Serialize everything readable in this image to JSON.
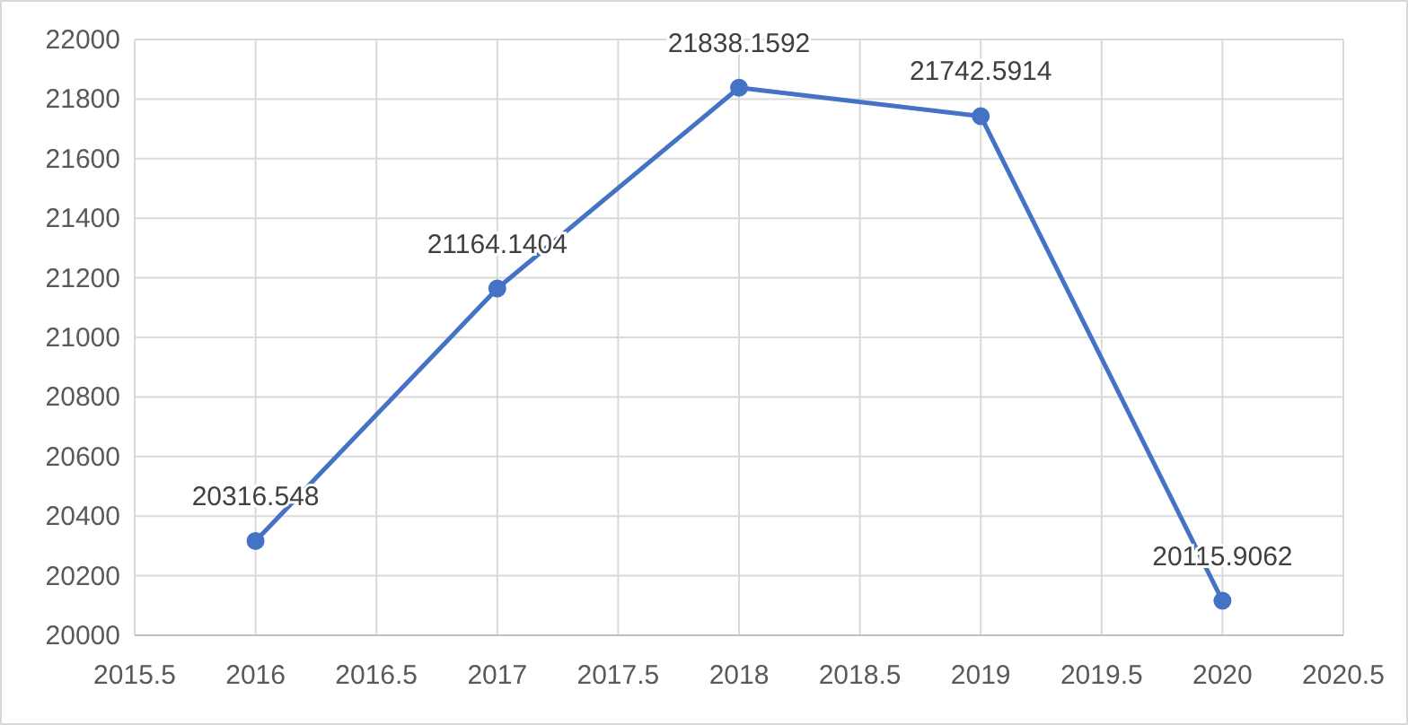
{
  "chart_data": {
    "type": "line",
    "x": [
      2016,
      2017,
      2018,
      2019,
      2020
    ],
    "series": [
      {
        "color": "#4472c4",
        "values": [
          20316.548,
          21164.1404,
          21838.1592,
          21742.5914,
          20115.9062
        ]
      }
    ],
    "xlim": [
      2015.5,
      2020.5
    ],
    "xticks": [
      2015.5,
      2016,
      2016.5,
      2017,
      2017.5,
      2018,
      2018.5,
      2019,
      2019.5,
      2020,
      2020.5
    ],
    "ylim": [
      20000,
      22000
    ],
    "yticks": [
      20000,
      20200,
      20400,
      20600,
      20800,
      21000,
      21200,
      21400,
      21600,
      21800,
      22000
    ],
    "grid": true,
    "marker": "circle",
    "line_style": "solid",
    "data_labels": true
  }
}
